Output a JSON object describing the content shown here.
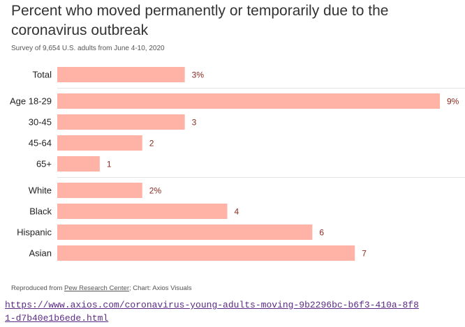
{
  "header": {
    "title": "Percent who moved permanently or temporarily due to the coronavirus outbreak",
    "subtitle": "Survey of 9,654 U.S. adults from June 4-10, 2020"
  },
  "footer": {
    "prefix": "Reproduced from ",
    "source": "Pew Research Center",
    "suffix": "; Chart: Axios Visuals",
    "url": "https://www.axios.com/coronavirus-young-adults-moving-9b2296bc-b6f3-410a-8f81-d7b40e1b6ede.html"
  },
  "colors": {
    "bar": "#ffb3a7",
    "value_label": "#8b2a1f",
    "category_label": "#222222",
    "divider": "#e2e2e2"
  },
  "chart_data": {
    "type": "bar",
    "orientation": "horizontal",
    "categories": [
      "Total",
      "Age 18-29",
      "30-45",
      "45-64",
      "65+",
      "White",
      "Black",
      "Hispanic",
      "Asian"
    ],
    "values": [
      3,
      9,
      3,
      2,
      1,
      2,
      4,
      6,
      7
    ],
    "value_labels": [
      "3%",
      "9%",
      "3",
      "2",
      "1",
      "2%",
      "4",
      "6",
      "7"
    ],
    "groups": [
      {
        "start": 0,
        "end": 0
      },
      {
        "start": 1,
        "end": 4
      },
      {
        "start": 5,
        "end": 8
      }
    ],
    "xlim": [
      0,
      9
    ],
    "grid": false,
    "legend": "none"
  }
}
